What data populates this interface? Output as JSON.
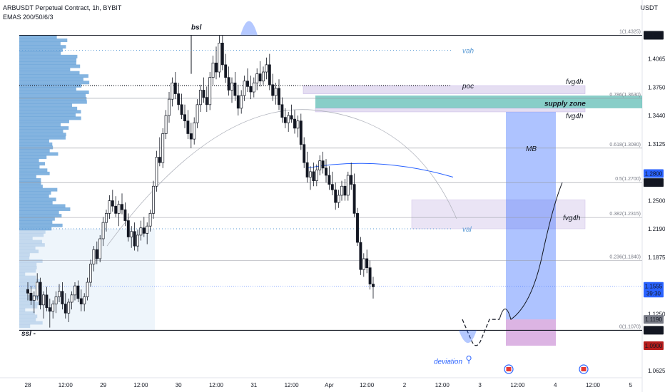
{
  "header": {
    "title": "ARBUSDT Perpetual Contract, 1h, BYBIT",
    "indicator": "EMAS 200/50/6/3",
    "currency": "USDT"
  },
  "chart_data": {
    "type": "candlestick",
    "ylim": [
      1.0625,
      1.44
    ],
    "y_ticks": [
      "1.4065",
      "1.3750",
      "1.3440",
      "1.3125",
      "1.2500",
      "1.2190",
      "1.1875",
      "1.1250",
      "1.0625"
    ],
    "x_ticks": [
      {
        "label": "28",
        "t": 0
      },
      {
        "label": "12:00",
        "t": 12
      },
      {
        "label": "29",
        "t": 24
      },
      {
        "label": "12:00",
        "t": 36
      },
      {
        "label": "30",
        "t": 48
      },
      {
        "label": "12:00",
        "t": 60
      },
      {
        "label": "31",
        "t": 72
      },
      {
        "label": "12:00",
        "t": 84
      },
      {
        "label": "Apr",
        "t": 96
      },
      {
        "label": "12:00",
        "t": 108
      },
      {
        "label": "2",
        "t": 120
      },
      {
        "label": "12:00",
        "t": 132
      },
      {
        "label": "3",
        "t": 144
      },
      {
        "label": "12:00",
        "t": 156
      },
      {
        "label": "4",
        "t": 168
      },
      {
        "label": "12:00",
        "t": 180
      },
      {
        "label": "5",
        "t": 192
      }
    ],
    "price_labels": [
      {
        "text": "1.4325",
        "price": 1.4325,
        "bg": "#131722",
        "fg": "#ffffff"
      },
      {
        "text": "1.2800",
        "price": 1.28,
        "bg": "#2962ff",
        "fg": "#ffffff"
      },
      {
        "text": "1.2700",
        "price": 1.27,
        "bg": "#131722",
        "fg": "#ffffff"
      },
      {
        "text": "1.1555",
        "price": 1.1555,
        "bg": "#2962ff",
        "fg": "#ffffff"
      },
      {
        "text": "39:30",
        "price": 1.148,
        "bg": "#2962ff",
        "fg": "#ffffff"
      },
      {
        "text": "1.1190",
        "price": 1.119,
        "bg": "#787b86",
        "fg": "#ffffff"
      },
      {
        "text": "1.1070",
        "price": 1.107,
        "bg": "#131722",
        "fg": "#ffffff"
      },
      {
        "text": "1.0900",
        "price": 1.09,
        "bg": "#b71c1c",
        "fg": "#ffffff"
      }
    ],
    "fib_levels": [
      {
        "label": "1(1.4325)",
        "price": 1.4325
      },
      {
        "label": "0.786(1.3630)",
        "price": 1.363
      },
      {
        "label": "0.618(1.3080)",
        "price": 1.308
      },
      {
        "label": "0.5(1.2700)",
        "price": 1.27
      },
      {
        "label": "0.382(1.2315)",
        "price": 1.2315
      },
      {
        "label": "0.236(1.1840)",
        "price": 1.184
      },
      {
        "label": "0(1.1070)",
        "price": 1.107
      }
    ],
    "annotations": {
      "bsl": "bsl",
      "ssl": "ssl -",
      "vah": "vah",
      "poc": "poc",
      "val": "val",
      "fvg_top": "fvg4h",
      "supply": "supply zone",
      "fvg_mid": "fvg4h",
      "mb": "MB",
      "fvg_low": "fvg4h",
      "deviation": "deviation"
    },
    "candles": [
      [
        0,
        1.152,
        1.16,
        1.14,
        1.148
      ],
      [
        1,
        1.148,
        1.156,
        1.135,
        1.14
      ],
      [
        2,
        1.14,
        1.15,
        1.126,
        1.145
      ],
      [
        3,
        1.145,
        1.17,
        1.14,
        1.16
      ],
      [
        4,
        1.16,
        1.165,
        1.13,
        1.135
      ],
      [
        5,
        1.135,
        1.15,
        1.12,
        1.146
      ],
      [
        6,
        1.146,
        1.155,
        1.128,
        1.132
      ],
      [
        7,
        1.132,
        1.142,
        1.11,
        1.128
      ],
      [
        8,
        1.128,
        1.14,
        1.12,
        1.136
      ],
      [
        9,
        1.136,
        1.15,
        1.126,
        1.144
      ],
      [
        10,
        1.144,
        1.158,
        1.138,
        1.15
      ],
      [
        11,
        1.15,
        1.16,
        1.13,
        1.136
      ],
      [
        12,
        1.136,
        1.148,
        1.12,
        1.126
      ],
      [
        13,
        1.126,
        1.142,
        1.116,
        1.138
      ],
      [
        14,
        1.138,
        1.15,
        1.13,
        1.146
      ],
      [
        15,
        1.146,
        1.16,
        1.14,
        1.156
      ],
      [
        16,
        1.156,
        1.162,
        1.138,
        1.142
      ],
      [
        17,
        1.142,
        1.152,
        1.128,
        1.136
      ],
      [
        18,
        1.136,
        1.148,
        1.128,
        1.144
      ],
      [
        19,
        1.144,
        1.165,
        1.14,
        1.16
      ],
      [
        20,
        1.16,
        1.185,
        1.155,
        1.18
      ],
      [
        21,
        1.18,
        1.2,
        1.172,
        1.196
      ],
      [
        22,
        1.196,
        1.205,
        1.18,
        1.186
      ],
      [
        23,
        1.186,
        1.212,
        1.182,
        1.208
      ],
      [
        24,
        1.208,
        1.232,
        1.2,
        1.226
      ],
      [
        25,
        1.226,
        1.24,
        1.216,
        1.236
      ],
      [
        26,
        1.236,
        1.256,
        1.23,
        1.25
      ],
      [
        27,
        1.25,
        1.262,
        1.238,
        1.244
      ],
      [
        28,
        1.244,
        1.255,
        1.232,
        1.236
      ],
      [
        29,
        1.236,
        1.25,
        1.222,
        1.246
      ],
      [
        30,
        1.246,
        1.258,
        1.235,
        1.24
      ],
      [
        31,
        1.24,
        1.248,
        1.222,
        1.228
      ],
      [
        32,
        1.228,
        1.236,
        1.205,
        1.21
      ],
      [
        33,
        1.21,
        1.222,
        1.198,
        1.216
      ],
      [
        34,
        1.216,
        1.226,
        1.195,
        1.2
      ],
      [
        35,
        1.2,
        1.218,
        1.194,
        1.212
      ],
      [
        36,
        1.212,
        1.228,
        1.206,
        1.22
      ],
      [
        37,
        1.22,
        1.232,
        1.21,
        1.214
      ],
      [
        38,
        1.214,
        1.226,
        1.202,
        1.222
      ],
      [
        39,
        1.222,
        1.24,
        1.216,
        1.236
      ],
      [
        40,
        1.236,
        1.272,
        1.23,
        1.266
      ],
      [
        41,
        1.266,
        1.305,
        1.26,
        1.298
      ],
      [
        42,
        1.298,
        1.32,
        1.288,
        1.292
      ],
      [
        43,
        1.292,
        1.33,
        1.286,
        1.324
      ],
      [
        44,
        1.324,
        1.35,
        1.318,
        1.344
      ],
      [
        45,
        1.344,
        1.37,
        1.336,
        1.362
      ],
      [
        46,
        1.362,
        1.386,
        1.354,
        1.38
      ],
      [
        47,
        1.38,
        1.392,
        1.362,
        1.368
      ],
      [
        48,
        1.368,
        1.38,
        1.35,
        1.356
      ],
      [
        49,
        1.356,
        1.368,
        1.34,
        1.345
      ],
      [
        50,
        1.345,
        1.356,
        1.33,
        1.338
      ],
      [
        51,
        1.338,
        1.35,
        1.318,
        1.324
      ],
      [
        52,
        1.324,
        1.336,
        1.308,
        1.318
      ],
      [
        53,
        1.318,
        1.342,
        1.312,
        1.336
      ],
      [
        54,
        1.336,
        1.362,
        1.33,
        1.356
      ],
      [
        55,
        1.356,
        1.378,
        1.348,
        1.372
      ],
      [
        56,
        1.372,
        1.386,
        1.358,
        1.364
      ],
      [
        57,
        1.364,
        1.376,
        1.348,
        1.356
      ],
      [
        58,
        1.356,
        1.392,
        1.35,
        1.386
      ],
      [
        59,
        1.386,
        1.41,
        1.378,
        1.402
      ],
      [
        60,
        1.402,
        1.42,
        1.384,
        1.392
      ],
      [
        61,
        1.392,
        1.432,
        1.386,
        1.424
      ],
      [
        62,
        1.424,
        1.432,
        1.394,
        1.4
      ],
      [
        63,
        1.4,
        1.412,
        1.38,
        1.386
      ],
      [
        64,
        1.386,
        1.398,
        1.366,
        1.372
      ],
      [
        65,
        1.372,
        1.386,
        1.358,
        1.38
      ],
      [
        66,
        1.38,
        1.392,
        1.36,
        1.366
      ],
      [
        67,
        1.366,
        1.378,
        1.344,
        1.352
      ],
      [
        68,
        1.352,
        1.372,
        1.346,
        1.366
      ],
      [
        69,
        1.366,
        1.388,
        1.36,
        1.382
      ],
      [
        70,
        1.382,
        1.396,
        1.37,
        1.376
      ],
      [
        71,
        1.376,
        1.388,
        1.362,
        1.37
      ],
      [
        72,
        1.37,
        1.386,
        1.364,
        1.38
      ],
      [
        73,
        1.38,
        1.396,
        1.372,
        1.39
      ],
      [
        74,
        1.39,
        1.404,
        1.376,
        1.382
      ],
      [
        75,
        1.382,
        1.398,
        1.378,
        1.392
      ],
      [
        76,
        1.392,
        1.408,
        1.384,
        1.4
      ],
      [
        77,
        1.4,
        1.412,
        1.372,
        1.378
      ],
      [
        78,
        1.378,
        1.39,
        1.36,
        1.366
      ],
      [
        79,
        1.366,
        1.38,
        1.356,
        1.374
      ],
      [
        80,
        1.374,
        1.384,
        1.35,
        1.356
      ],
      [
        81,
        1.356,
        1.364,
        1.336,
        1.342
      ],
      [
        82,
        1.342,
        1.352,
        1.33,
        1.336
      ],
      [
        83,
        1.336,
        1.348,
        1.326,
        1.344
      ],
      [
        84,
        1.344,
        1.356,
        1.336,
        1.34
      ],
      [
        85,
        1.34,
        1.35,
        1.324,
        1.33
      ],
      [
        86,
        1.33,
        1.344,
        1.32,
        1.338
      ],
      [
        87,
        1.338,
        1.346,
        1.306,
        1.312
      ],
      [
        88,
        1.312,
        1.32,
        1.286,
        1.292
      ],
      [
        89,
        1.292,
        1.304,
        1.27,
        1.276
      ],
      [
        90,
        1.276,
        1.288,
        1.262,
        1.282
      ],
      [
        91,
        1.282,
        1.292,
        1.266,
        1.272
      ],
      [
        92,
        1.272,
        1.29,
        1.266,
        1.284
      ],
      [
        93,
        1.284,
        1.3,
        1.278,
        1.294
      ],
      [
        94,
        1.294,
        1.304,
        1.28,
        1.286
      ],
      [
        95,
        1.286,
        1.296,
        1.27,
        1.278
      ],
      [
        96,
        1.278,
        1.288,
        1.262,
        1.268
      ],
      [
        97,
        1.268,
        1.282,
        1.256,
        1.262
      ],
      [
        98,
        1.262,
        1.27,
        1.24,
        1.248
      ],
      [
        99,
        1.248,
        1.262,
        1.242,
        1.256
      ],
      [
        100,
        1.256,
        1.272,
        1.25,
        1.266
      ],
      [
        101,
        1.266,
        1.274,
        1.25,
        1.256
      ],
      [
        102,
        1.256,
        1.282,
        1.25,
        1.278
      ],
      [
        103,
        1.278,
        1.292,
        1.262,
        1.268
      ],
      [
        104,
        1.268,
        1.28,
        1.232,
        1.236
      ],
      [
        105,
        1.236,
        1.242,
        1.2,
        1.204
      ],
      [
        106,
        1.204,
        1.21,
        1.168,
        1.174
      ],
      [
        107,
        1.174,
        1.192,
        1.166,
        1.186
      ],
      [
        108,
        1.186,
        1.196,
        1.17,
        1.176
      ],
      [
        109,
        1.176,
        1.184,
        1.152,
        1.158
      ],
      [
        110,
        1.158,
        1.166,
        1.142,
        1.155
      ]
    ]
  }
}
